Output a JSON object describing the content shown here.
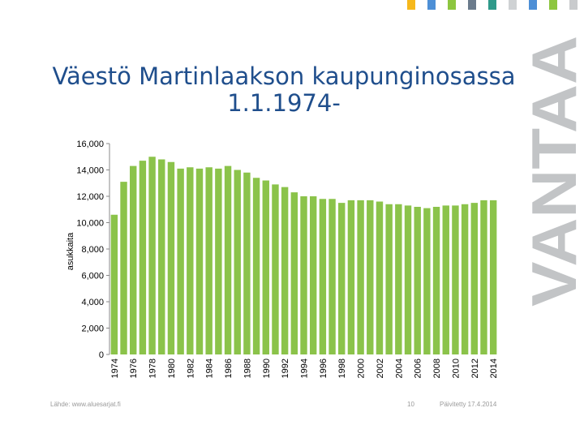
{
  "header": {
    "colors": [
      "#f6b81c",
      "#4d8fd6",
      "#8dc63f",
      "#6b7b8c",
      "#2f9a8a",
      "#cfd2d4",
      "#4d8fd6",
      "#8dc63f",
      "#c9cbcd"
    ]
  },
  "brand": {
    "text": "VANTAA",
    "color": "#c2c4c6"
  },
  "chart_data": {
    "type": "bar",
    "title": "Väestö Martinlaakson kaupunginosassa 1.1.1974-",
    "xlabel": "",
    "ylabel": "asukkaita",
    "ylim": [
      0,
      16000
    ],
    "ytick_labels": [
      "0",
      "2,000",
      "4,000",
      "6,000",
      "8,000",
      "10,000",
      "12,000",
      "14,000",
      "16,000"
    ],
    "yticks": [
      0,
      2000,
      4000,
      6000,
      8000,
      10000,
      12000,
      14000,
      16000
    ],
    "categories": [
      "1974",
      "1975",
      "1976",
      "1977",
      "1978",
      "1979",
      "1980",
      "1981",
      "1982",
      "1983",
      "1984",
      "1985",
      "1986",
      "1987",
      "1988",
      "1989",
      "1990",
      "1991",
      "1992",
      "1993",
      "1994",
      "1995",
      "1996",
      "1997",
      "1998",
      "1999",
      "2000",
      "2001",
      "2002",
      "2003",
      "2004",
      "2005",
      "2006",
      "2007",
      "2008",
      "2009",
      "2010",
      "2011",
      "2012",
      "2013",
      "2014"
    ],
    "xtick_labels": [
      "1974",
      "1976",
      "1978",
      "1980",
      "1982",
      "1984",
      "1986",
      "1988",
      "1990",
      "1992",
      "1994",
      "1996",
      "1998",
      "2000",
      "2002",
      "2004",
      "2006",
      "2008",
      "2010",
      "2012",
      "2014"
    ],
    "values": [
      10600,
      13100,
      14300,
      14700,
      15000,
      14800,
      14600,
      14100,
      14200,
      14100,
      14200,
      14100,
      14300,
      14000,
      13800,
      13400,
      13200,
      12900,
      12700,
      12300,
      12000,
      12000,
      11800,
      11800,
      11500,
      11700,
      11700,
      11700,
      11600,
      11400,
      11400,
      11300,
      11200,
      11100,
      11200,
      11300,
      11300,
      11400,
      11500,
      11700,
      11700
    ],
    "bar_color": "#8bc34a",
    "grid": false,
    "legend": "none"
  },
  "footer": {
    "source": "Lähde: www.aluesarjat.fi",
    "page": "10",
    "updated": "Päivitetty 17.4.2014"
  }
}
